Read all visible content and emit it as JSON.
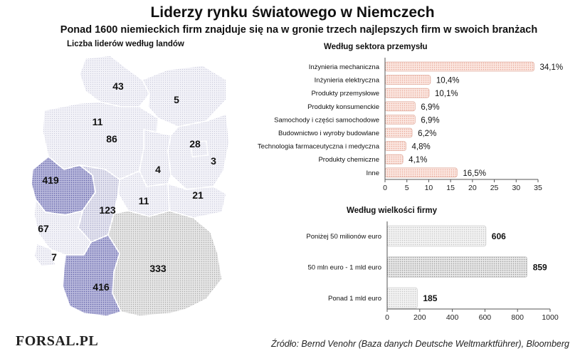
{
  "title": "Liderzy rynku światowego w Niemczech",
  "subtitle": "Ponad 1600 niemieckich firm znajduje się na w gronie trzech najlepszych firm w swoich branżach",
  "map": {
    "title": "Liczba liderów według landów",
    "regions": [
      {
        "value": "43"
      },
      {
        "value": "5"
      },
      {
        "value": "11"
      },
      {
        "value": "86"
      },
      {
        "value": "28"
      },
      {
        "value": "3"
      },
      {
        "value": "419"
      },
      {
        "value": "4"
      },
      {
        "value": "21"
      },
      {
        "value": "11"
      },
      {
        "value": "123"
      },
      {
        "value": "67"
      },
      {
        "value": "333"
      },
      {
        "value": "7"
      },
      {
        "value": "416"
      }
    ]
  },
  "footer": {
    "logo_text": "FORSAL.PL",
    "source": "Źródło:  Bernd Venohr (Baza danych Deutsche Weltmarktführer), Bloomberg"
  },
  "chart_data": [
    {
      "type": "bar",
      "orientation": "horizontal",
      "title": "Według sektora przemysłu",
      "categories": [
        "Inżynieria mechaniczna",
        "Inżynieria elektryczna",
        "Produkty przemysłowe",
        "Produkty konsumenckie",
        "Samochody i części samochodowe",
        "Budownictwo i wyroby budowlane",
        "Technologia farmaceutyczna i medyczna",
        "Produkty chemiczne",
        "Inne"
      ],
      "values": [
        34.1,
        10.4,
        10.1,
        6.9,
        6.9,
        6.2,
        4.8,
        4.1,
        16.5
      ],
      "data_labels": [
        "34,1%",
        "10,4%",
        "10,1%",
        "6,9%",
        "6,9%",
        "6,2%",
        "4,8%",
        "4,1%",
        "16,5%"
      ],
      "xlim": [
        0,
        35
      ],
      "xticks": [
        "0",
        "5",
        "10",
        "15",
        "20",
        "25",
        "30",
        "35"
      ],
      "bar_color": "#f3c9bd"
    },
    {
      "type": "bar",
      "orientation": "horizontal",
      "title": "Według wielkości firmy",
      "categories": [
        "Poniżej 50 milionów euro",
        "50 mln euro - 1 mld euro",
        "Ponad 1 mld euro"
      ],
      "values": [
        606,
        859,
        185
      ],
      "data_labels": [
        "606",
        "859",
        "185"
      ],
      "xlim": [
        0,
        1000
      ],
      "xticks": [
        "0",
        "200",
        "400",
        "600",
        "800",
        "1000"
      ],
      "bar_color": "#d9d9d9"
    }
  ]
}
